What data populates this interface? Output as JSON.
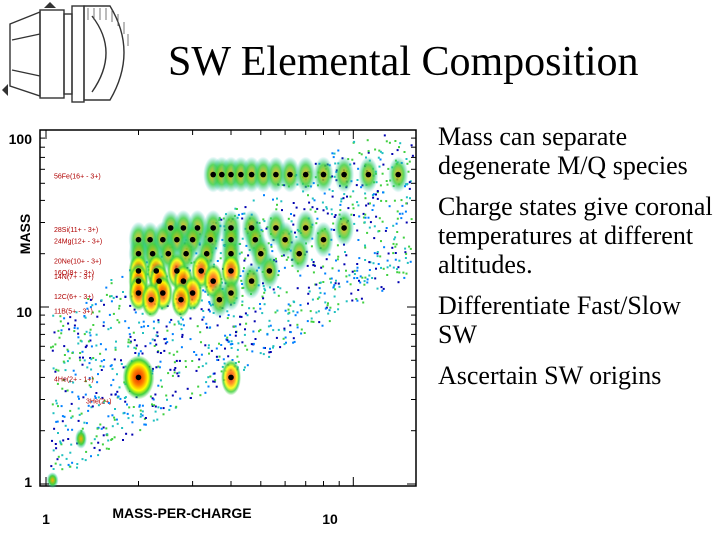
{
  "slide": {
    "title": "SW Elemental Composition",
    "bullets": [
      "Mass can separate degenerate M/Q species",
      "Charge states give coronal temperatures at different altitudes.",
      "Differentiate Fast/Slow SW",
      "Ascertain SW origins"
    ]
  },
  "chart_data": {
    "type": "heatmap",
    "xlabel": "MASS-PER-CHARGE",
    "ylabel": "MASS",
    "x_scale": "log",
    "y_scale": "log",
    "x_ticks": [
      "1",
      "10"
    ],
    "y_ticks": [
      "1",
      "10",
      "100"
    ],
    "xlim": [
      1,
      16
    ],
    "ylim": [
      1,
      100
    ],
    "colormap": [
      "#0000b0",
      "#0080ff",
      "#20c0c0",
      "#40d040",
      "#ffff00",
      "#ff8000",
      "#e02000"
    ],
    "annotations": [
      "56Fe(16+ - 3+)",
      "28Si(11+ - 3+)",
      "24Mg(12+ - 3+)",
      "20Ne(10+ - 3+)",
      "16O(8+ - 3+)",
      "12C(6+ - 3+)",
      "14N(7+ - 3+)",
      "11B(5+ - 3+)",
      "4He(2+ - 1+)",
      "3He(2+)"
    ]
  }
}
